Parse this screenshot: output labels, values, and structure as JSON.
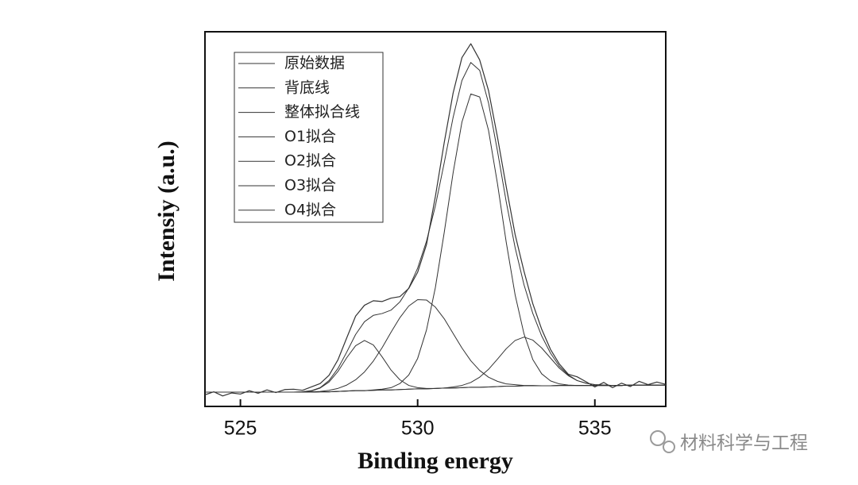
{
  "chart_data": {
    "type": "line",
    "x_label": "Binding energy",
    "y_label": "Intensiy (a.u.)",
    "xlim": [
      524,
      537
    ],
    "ylim": [
      0,
      100
    ],
    "xticks": [
      525,
      530,
      535
    ],
    "x": [
      524,
      524.25,
      524.5,
      524.75,
      525,
      525.25,
      525.5,
      525.75,
      526,
      526.25,
      526.5,
      526.75,
      527,
      527.25,
      527.5,
      527.75,
      528,
      528.25,
      528.5,
      528.75,
      529,
      529.25,
      529.5,
      529.75,
      530,
      530.25,
      530.5,
      530.75,
      531,
      531.25,
      531.5,
      531.75,
      532,
      532.25,
      532.5,
      532.75,
      533,
      533.25,
      533.5,
      533.75,
      534,
      534.25,
      534.5,
      534.75,
      535,
      535.25,
      535.5,
      535.75,
      536,
      536.25,
      536.5,
      536.75,
      537
    ],
    "series": [
      {
        "name": "原始数据",
        "color": "#333333",
        "values": [
          3.1,
          3.9,
          2.8,
          3.6,
          3.3,
          4.2,
          3.5,
          4.4,
          3.7,
          4.5,
          4.6,
          4.3,
          5.2,
          6.1,
          8.3,
          12.4,
          18.3,
          24.1,
          27.0,
          28.2,
          28.0,
          28.9,
          29.3,
          31.5,
          35.8,
          43.2,
          56.0,
          70.4,
          83.6,
          93.1,
          96.8,
          92.5,
          84.3,
          72.0,
          58.6,
          45.9,
          36.1,
          27.4,
          20.6,
          15.2,
          11.3,
          8.6,
          7.9,
          6.6,
          5.2,
          6.4,
          5.0,
          6.2,
          5.3,
          6.7,
          5.8,
          6.5,
          5.9
        ]
      },
      {
        "name": "背底线",
        "color": "#333333",
        "values": [
          3.8,
          3.8,
          3.8,
          3.8,
          3.8,
          3.8,
          3.8,
          3.8,
          3.8,
          3.8,
          3.8,
          3.8,
          3.8,
          3.9,
          3.9,
          4.0,
          4.1,
          4.2,
          4.2,
          4.3,
          4.4,
          4.4,
          4.5,
          4.6,
          4.7,
          4.7,
          4.8,
          4.9,
          4.9,
          5.0,
          5.1,
          5.1,
          5.2,
          5.3,
          5.4,
          5.4,
          5.5,
          5.5,
          5.5,
          5.5,
          5.6,
          5.6,
          5.6,
          5.6,
          5.6,
          5.6,
          5.6,
          5.6,
          5.7,
          5.7,
          5.7,
          5.7,
          5.7
        ]
      },
      {
        "name": "整体拟合线",
        "color": "#333333",
        "values": [
          3.8,
          3.8,
          3.8,
          3.8,
          3.8,
          3.8,
          3.8,
          3.8,
          3.8,
          3.8,
          3.8,
          3.9,
          4.2,
          5.0,
          6.9,
          10.1,
          14.5,
          19.2,
          22.6,
          24.3,
          24.8,
          25.7,
          27.9,
          31.6,
          36.9,
          44.1,
          53.5,
          65.0,
          77.1,
          87.0,
          91.8,
          89.7,
          81.0,
          68.3,
          54.6,
          42.4,
          32.5,
          24.8,
          18.8,
          14.2,
          10.7,
          8.4,
          6.9,
          6.2,
          5.8,
          5.7,
          5.6,
          5.6,
          5.7,
          5.7,
          5.7,
          5.7,
          5.7
        ]
      },
      {
        "name": "O1拟合",
        "color": "#333333",
        "values": [
          3.8,
          3.8,
          3.8,
          3.8,
          3.8,
          3.8,
          3.8,
          3.8,
          3.8,
          3.8,
          3.8,
          3.8,
          3.8,
          3.9,
          3.9,
          4.0,
          4.1,
          4.2,
          4.2,
          4.4,
          4.6,
          5.0,
          6.1,
          8.4,
          12.8,
          20.4,
          31.7,
          46.4,
          62.3,
          75.9,
          83.4,
          82.6,
          73.7,
          59.6,
          43.8,
          29.8,
          19.4,
          12.5,
          8.7,
          6.8,
          6.0,
          5.7,
          5.6,
          5.6,
          5.6,
          5.6,
          5.6,
          5.6,
          5.7,
          5.7,
          5.7,
          5.7,
          5.7
        ]
      },
      {
        "name": "O2拟合",
        "color": "#333333",
        "values": [
          3.8,
          3.8,
          3.8,
          3.8,
          3.8,
          3.8,
          3.8,
          3.8,
          3.8,
          3.8,
          3.8,
          3.8,
          3.8,
          3.9,
          3.9,
          4.0,
          4.1,
          4.2,
          4.2,
          4.3,
          4.4,
          4.4,
          4.5,
          4.6,
          4.7,
          4.7,
          4.8,
          4.9,
          5.2,
          5.6,
          6.4,
          7.8,
          9.9,
          12.6,
          15.4,
          17.6,
          18.5,
          17.7,
          15.6,
          12.9,
          10.2,
          8.2,
          6.9,
          6.2,
          5.8,
          5.7,
          5.6,
          5.6,
          5.7,
          5.7,
          5.7,
          5.7,
          5.7
        ]
      },
      {
        "name": "O3拟合",
        "color": "#333333",
        "values": [
          3.8,
          3.8,
          3.8,
          3.8,
          3.8,
          3.8,
          3.8,
          3.8,
          3.8,
          3.8,
          3.8,
          3.8,
          3.9,
          4.0,
          4.3,
          4.8,
          5.7,
          7.1,
          9.2,
          12.1,
          15.7,
          19.8,
          23.7,
          26.8,
          28.5,
          28.4,
          26.5,
          23.4,
          19.5,
          15.6,
          12.2,
          9.6,
          7.8,
          6.7,
          6.0,
          5.8,
          5.6,
          5.6,
          5.5,
          5.5,
          5.6,
          5.6,
          5.6,
          5.6,
          5.6,
          5.6,
          5.6,
          5.6,
          5.7,
          5.7,
          5.7,
          5.7,
          5.7
        ]
      },
      {
        "name": "O4拟合",
        "color": "#333333",
        "values": [
          3.8,
          3.8,
          3.8,
          3.8,
          3.8,
          3.8,
          3.8,
          3.8,
          3.8,
          3.8,
          3.8,
          3.9,
          4.1,
          4.9,
          6.5,
          9.3,
          13.0,
          16.2,
          17.6,
          16.4,
          13.2,
          9.7,
          7.1,
          5.6,
          5.0,
          4.8,
          4.8,
          4.9,
          4.9,
          5.0,
          5.1,
          5.1,
          5.2,
          5.3,
          5.4,
          5.4,
          5.5,
          5.5,
          5.5,
          5.5,
          5.6,
          5.6,
          5.6,
          5.6,
          5.6,
          5.6,
          5.6,
          5.6,
          5.7,
          5.7,
          5.7,
          5.7,
          5.7
        ]
      }
    ]
  },
  "watermark": "材料科学与工程"
}
